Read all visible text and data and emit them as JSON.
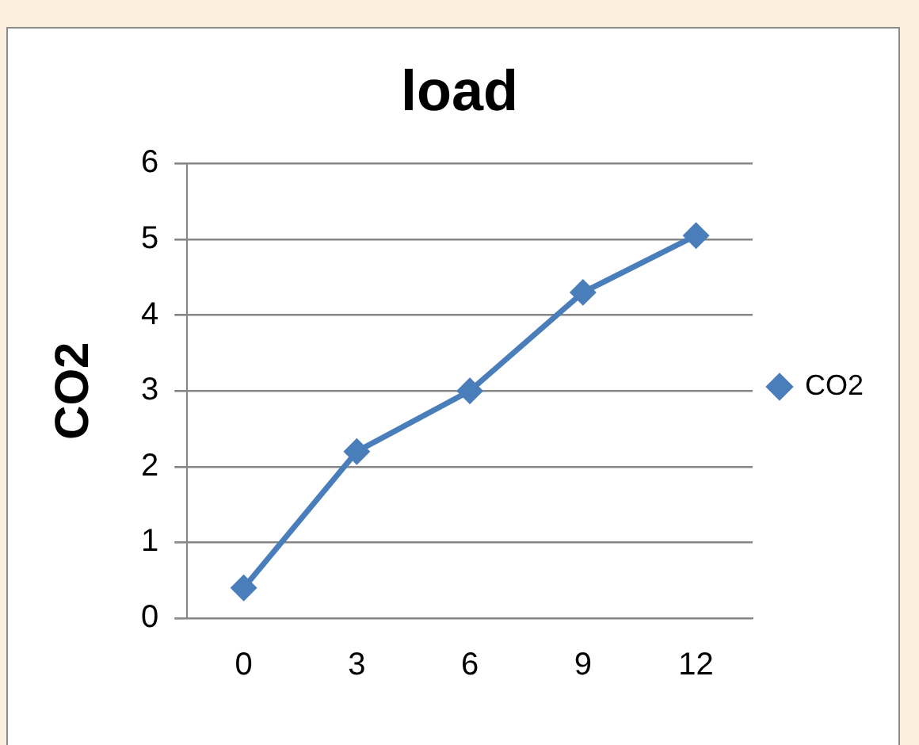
{
  "chart_data": {
    "type": "line",
    "title": "load",
    "ylabel": "CO2",
    "categories": [
      "0",
      "3",
      "6",
      "9",
      "12"
    ],
    "series": [
      {
        "name": "CO2",
        "color": "#4a7ebb",
        "values": [
          0.4,
          2.2,
          3.0,
          4.3,
          5.05
        ]
      }
    ],
    "ylim": [
      0,
      6
    ],
    "yticks": [
      0,
      1,
      2,
      3,
      4,
      5,
      6
    ],
    "grid": "y",
    "legend": "right",
    "marker": "diamond",
    "line_style": "solid"
  }
}
